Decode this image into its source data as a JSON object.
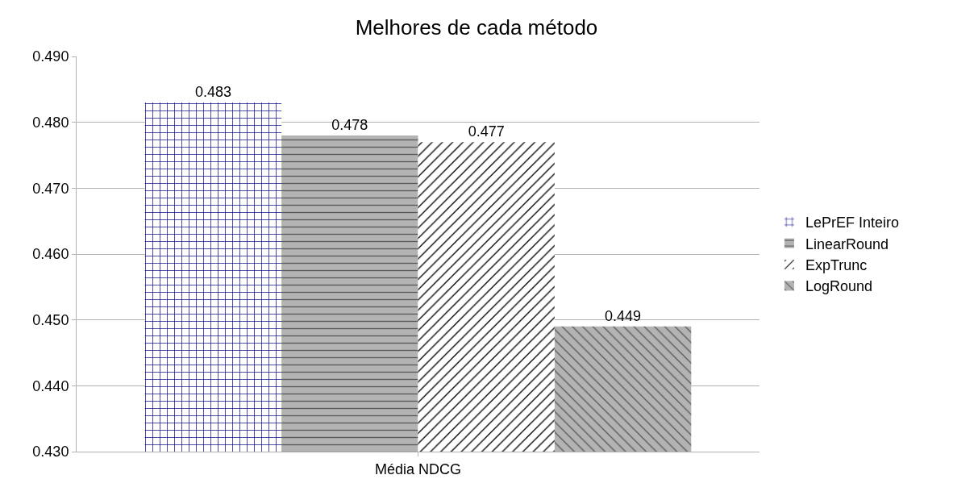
{
  "chart_data": {
    "type": "bar",
    "title": "Melhores de cada método",
    "categories": [
      "Média NDCG"
    ],
    "series": [
      {
        "name": "LePrEF Inteiro",
        "color": "#000080",
        "values": [
          0.483
        ]
      },
      {
        "name": "LinearRound",
        "color": "#b3b3b3",
        "values": [
          0.478
        ]
      },
      {
        "name": "ExpTrunc",
        "color": "#000000",
        "values": [
          0.477
        ]
      },
      {
        "name": "LogRound",
        "color": "#b3b3b3",
        "values": [
          0.449
        ]
      }
    ],
    "ylim": [
      0.43,
      0.49
    ],
    "yticks": [
      {
        "value": 0.43,
        "label": "0.430"
      },
      {
        "value": 0.44,
        "label": "0.440"
      },
      {
        "value": 0.45,
        "label": "0.450"
      },
      {
        "value": 0.46,
        "label": "0.460"
      },
      {
        "value": 0.47,
        "label": "0.470"
      },
      {
        "value": 0.48,
        "label": "0.480"
      },
      {
        "value": 0.49,
        "label": "0.490"
      }
    ],
    "grid": "y",
    "legend": "right",
    "data_labels": true
  }
}
